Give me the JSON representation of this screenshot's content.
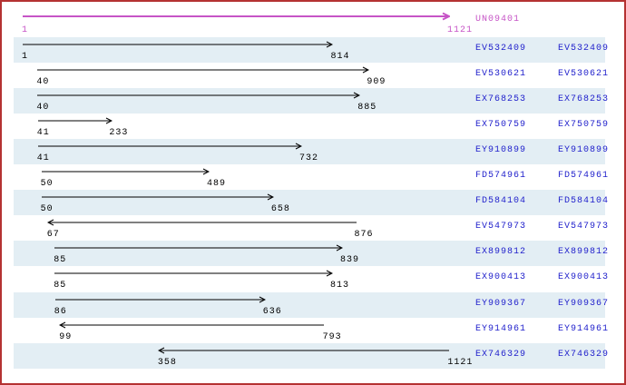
{
  "colors": {
    "border": "#b43232",
    "band": "#e3eef4",
    "accession_blue": "#2222cc",
    "reference_magenta": "#c654c6",
    "arrow_black": "#000000",
    "background": "#ffffff"
  },
  "chart_data": {
    "type": "bar",
    "subtype": "horizontal-range-arrows",
    "xlim": [
      1,
      1121
    ],
    "grid": false,
    "legend": false,
    "label_columns": 2,
    "reference": {
      "label": "UN09401",
      "start": 1,
      "end": 1121,
      "direction": "right"
    },
    "rows": [
      {
        "label": "EV532409",
        "start": 1,
        "end": 814,
        "direction": "right"
      },
      {
        "label": "EV530621",
        "start": 40,
        "end": 909,
        "direction": "right"
      },
      {
        "label": "EX768253",
        "start": 40,
        "end": 885,
        "direction": "right"
      },
      {
        "label": "EX750759",
        "start": 41,
        "end": 233,
        "direction": "right"
      },
      {
        "label": "EY910899",
        "start": 41,
        "end": 732,
        "direction": "right"
      },
      {
        "label": "FD574961",
        "start": 50,
        "end": 489,
        "direction": "right"
      },
      {
        "label": "FD584104",
        "start": 50,
        "end": 658,
        "direction": "right"
      },
      {
        "label": "EV547973",
        "start": 67,
        "end": 876,
        "direction": "left"
      },
      {
        "label": "EX899812",
        "start": 85,
        "end": 839,
        "direction": "right"
      },
      {
        "label": "EX900413",
        "start": 85,
        "end": 813,
        "direction": "right"
      },
      {
        "label": "EY909367",
        "start": 86,
        "end": 636,
        "direction": "right"
      },
      {
        "label": "EY914961",
        "start": 99,
        "end": 793,
        "direction": "left"
      },
      {
        "label": "EX746329",
        "start": 358,
        "end": 1121,
        "direction": "left"
      }
    ]
  }
}
